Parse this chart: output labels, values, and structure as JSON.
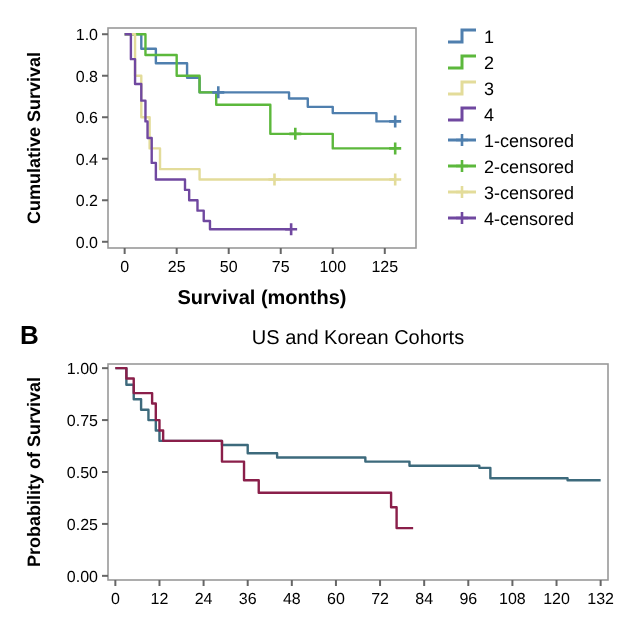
{
  "chart_data": [
    {
      "type": "step",
      "xlabel": "Survival (months)",
      "ylabel": "Cumulative Survival",
      "xlim": [
        -8,
        140
      ],
      "ylim": [
        -0.03,
        1.03
      ],
      "xticks": [
        0,
        25,
        50,
        75,
        100,
        125
      ],
      "yticks": [
        {
          "value": 0,
          "label": "0.0"
        },
        {
          "value": 0.2,
          "label": "0.2"
        },
        {
          "value": 0.4,
          "label": "0.4"
        },
        {
          "value": 0.6,
          "label": "0.6"
        },
        {
          "value": 0.8,
          "label": "0.8"
        },
        {
          "value": 1,
          "label": "1.0"
        }
      ],
      "legend": "right",
      "grid": false,
      "series": [
        {
          "name": "1",
          "color": "#4f7fae",
          "x": [
            0,
            8,
            15,
            30,
            36,
            72,
            79,
            88,
            100,
            121,
            130
          ],
          "values": [
            1,
            0.93,
            0.86,
            0.79,
            0.72,
            0.72,
            0.69,
            0.65,
            0.62,
            0.58,
            0.58
          ]
        },
        {
          "name": "2",
          "color": "#5cb83c",
          "x": [
            0,
            10,
            25,
            36,
            44,
            70,
            100,
            130
          ],
          "values": [
            1,
            0.9,
            0.8,
            0.72,
            0.66,
            0.52,
            0.45,
            0.45
          ]
        },
        {
          "name": "3",
          "color": "#e3dc9a",
          "x": [
            0,
            5,
            8,
            12,
            17,
            36,
            130
          ],
          "values": [
            1,
            0.8,
            0.6,
            0.45,
            0.35,
            0.3,
            0.3
          ]
        },
        {
          "name": "4",
          "color": "#7048a0",
          "x": [
            0,
            3,
            5,
            8,
            10,
            11,
            13,
            15,
            29,
            31,
            35,
            38,
            41,
            80
          ],
          "values": [
            1,
            0.88,
            0.76,
            0.68,
            0.58,
            0.5,
            0.38,
            0.3,
            0.25,
            0.2,
            0.15,
            0.1,
            0.06,
            0.06
          ]
        },
        {
          "name": "1-censored",
          "type": "scatter",
          "marker": "cross",
          "color": "#4f7fae",
          "x": [
            45,
            130
          ],
          "values": [
            0.72,
            0.58
          ]
        },
        {
          "name": "2-censored",
          "type": "scatter",
          "marker": "cross",
          "color": "#5cb83c",
          "x": [
            82,
            130
          ],
          "values": [
            0.52,
            0.45
          ]
        },
        {
          "name": "3-censored",
          "type": "scatter",
          "marker": "cross",
          "color": "#e3dc9a",
          "x": [
            72,
            130
          ],
          "values": [
            0.3,
            0.3
          ]
        },
        {
          "name": "4-censored",
          "type": "scatter",
          "marker": "cross",
          "color": "#7048a0",
          "x": [
            80
          ],
          "values": [
            0.06
          ]
        }
      ]
    },
    {
      "type": "step",
      "title": "US and Korean Cohorts",
      "ylabel": "Probability of Survival",
      "annotations": [
        "B"
      ],
      "xlim": [
        -2,
        134
      ],
      "ylim": [
        -0.02,
        1.02
      ],
      "xticks": [
        0,
        12,
        24,
        36,
        48,
        60,
        72,
        84,
        96,
        108,
        120,
        132
      ],
      "yticks": [
        {
          "value": 0,
          "label": "0.00"
        },
        {
          "value": 0.25,
          "label": "0.25"
        },
        {
          "value": 0.5,
          "label": "0.50"
        },
        {
          "value": 0.75,
          "label": "0.75"
        },
        {
          "value": 1,
          "label": "1.00"
        }
      ],
      "grid": false,
      "series": [
        {
          "color": "#3d6a7c",
          "x": [
            0,
            3,
            5,
            7,
            9,
            11,
            12,
            29,
            36,
            44,
            68,
            80,
            99,
            102,
            123,
            132
          ],
          "values": [
            1,
            0.92,
            0.85,
            0.8,
            0.75,
            0.7,
            0.65,
            0.63,
            0.59,
            0.57,
            0.55,
            0.53,
            0.52,
            0.47,
            0.46,
            0.46
          ]
        },
        {
          "color": "#8a1f4a",
          "x": [
            0,
            3,
            5,
            10,
            11,
            12,
            13,
            29,
            35,
            39,
            75,
            76.5,
            81
          ],
          "values": [
            1,
            0.95,
            0.88,
            0.83,
            0.75,
            0.7,
            0.65,
            0.55,
            0.46,
            0.4,
            0.33,
            0.23,
            0.23
          ]
        }
      ]
    }
  ]
}
